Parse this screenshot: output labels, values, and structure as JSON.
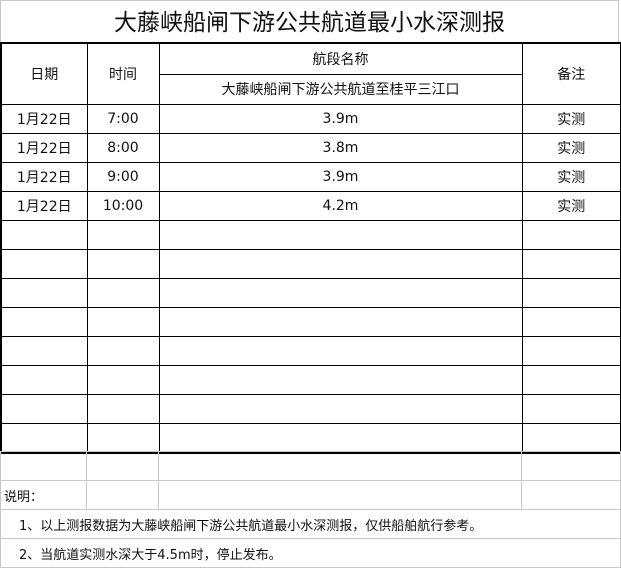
{
  "title": "大藤峡船闸下游公共航道最小水深测报",
  "headers": {
    "date": "日期",
    "time": "时间",
    "section_name": "航段名称",
    "section": "大藤峡船闸下游公共航道至桂平三江口",
    "remark": "备注"
  },
  "rows": [
    {
      "date": "1月22日",
      "time": "7:00",
      "depth": "3.9m",
      "remark": "实测"
    },
    {
      "date": "1月22日",
      "time": "8:00",
      "depth": "3.8m",
      "remark": "实测"
    },
    {
      "date": "1月22日",
      "time": "9:00",
      "depth": "3.9m",
      "remark": "实测"
    },
    {
      "date": "1月22日",
      "time": "10:00",
      "depth": "4.2m",
      "remark": "实测"
    }
  ],
  "notes": {
    "label": "说明：",
    "items": [
      "1、以上测报数据为大藤峡船闸下游公共航道最小水深测报，仅供船舶航行参考。",
      "2、当航道实测水深大于4.5m时，停止发布。"
    ]
  }
}
